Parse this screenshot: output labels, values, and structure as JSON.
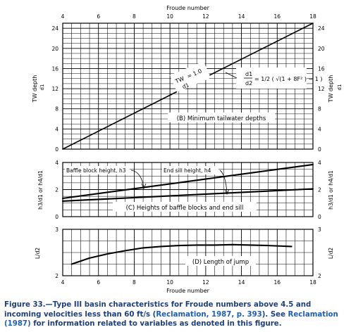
{
  "chart_data": [
    {
      "panel": "A",
      "type": "line",
      "title": "(B) Minimum tailwater depths",
      "top_axis_label": "Froude number",
      "ylabel_left": "TW depth",
      "ylabel_left_sub": "d1",
      "ylabel_right": "TW depth",
      "ylabel_right_sub": "d1",
      "xlim": [
        4,
        18
      ],
      "ylim": [
        0,
        25
      ],
      "x_ticks": [
        "4",
        "6",
        "8",
        "10",
        "12",
        "14",
        "16",
        "18"
      ],
      "y_ticks": [
        "0",
        "4",
        "8",
        "12",
        "16",
        "20",
        "24"
      ],
      "grid": true,
      "series": [
        {
          "x": [
            4,
            18
          ],
          "y": [
            0,
            25
          ]
        }
      ],
      "annotations": {
        "line_label_a": "TW",
        "line_label_b": "d1",
        "line_label_value": "= 1.0",
        "equation_lhs_num": "d1",
        "equation_lhs_den": "d2",
        "equation_rhs": "= 1/2 ( √(1 + 8F² ) − 1 )"
      }
    },
    {
      "panel": "B",
      "type": "line",
      "title": "(C) Heights of baffle blocks and end sill",
      "ylabel_left": "h3/d1 or h4/d1",
      "ylabel_right": "h3/d1 or h4/d1",
      "xlim": [
        4,
        18
      ],
      "ylim": [
        0,
        4
      ],
      "y_ticks": [
        "0",
        "2",
        "4"
      ],
      "grid": true,
      "series": [
        {
          "name": "Baffle block height, h3",
          "x": [
            4,
            18
          ],
          "y": [
            1.35,
            3.85
          ]
        },
        {
          "name": "End sill height, h4",
          "x": [
            4,
            18
          ],
          "y": [
            1.15,
            2.05
          ]
        }
      ]
    },
    {
      "panel": "C",
      "type": "line",
      "title": "(D) Length of jump",
      "xlabel": "Froude number",
      "ylabel_left": "L/d2",
      "ylabel_right": "L/d2",
      "xlim": [
        4,
        18
      ],
      "ylim": [
        2,
        3
      ],
      "x_ticks": [
        "4",
        "6",
        "8",
        "10",
        "12",
        "14",
        "16",
        "18"
      ],
      "y_ticks": [
        "2",
        "3"
      ],
      "grid": true,
      "series": [
        {
          "x": [
            4.5,
            5.5,
            6.5,
            7.5,
            8.5,
            9.5,
            10.5,
            11.5,
            12.5,
            13.5,
            14.5,
            15.5,
            16.8
          ],
          "y": [
            2.25,
            2.38,
            2.47,
            2.54,
            2.6,
            2.63,
            2.65,
            2.66,
            2.66,
            2.67,
            2.66,
            2.65,
            2.63
          ]
        }
      ]
    }
  ],
  "caption": {
    "part1": "Figure 33.—Type III basin characteristics for Froude numbers above 4.5 and incoming velocities less than 60 ft/s (",
    "ref1": "Reclamation, 1987, p. 393",
    "part2": ").  See ",
    "ref2": "Reclamation (1987)",
    "part3": " for information related to variables as denoted in this figure."
  }
}
